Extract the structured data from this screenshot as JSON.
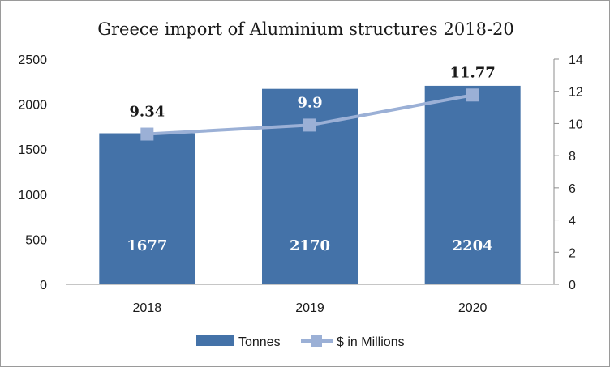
{
  "chart_data": {
    "type": "bar",
    "title": "Greece import of Aluminium structures 2018-20",
    "categories": [
      "2018",
      "2019",
      "2020"
    ],
    "y_left": {
      "min": 0,
      "max": 2500,
      "step": 500,
      "ticks": [
        "0",
        "500",
        "1000",
        "1500",
        "2000",
        "2500"
      ]
    },
    "y_right": {
      "min": 0,
      "max": 14,
      "step": 2,
      "ticks": [
        "0",
        "2",
        "4",
        "6",
        "8",
        "10",
        "12",
        "14"
      ]
    },
    "series": [
      {
        "name": "Tonnes",
        "type": "bar",
        "axis": "left",
        "color": "#4472a8",
        "values": [
          1677,
          2170,
          2204
        ],
        "labels": [
          "1677",
          "2170",
          "2204"
        ]
      },
      {
        "name": "$ in Millions",
        "type": "line",
        "axis": "right",
        "color": "#9bb0d6",
        "values": [
          9.34,
          9.9,
          11.77
        ],
        "labels": [
          "9.34",
          "9.9",
          "11.77"
        ]
      }
    ],
    "grid": false,
    "legend_position": "bottom"
  }
}
